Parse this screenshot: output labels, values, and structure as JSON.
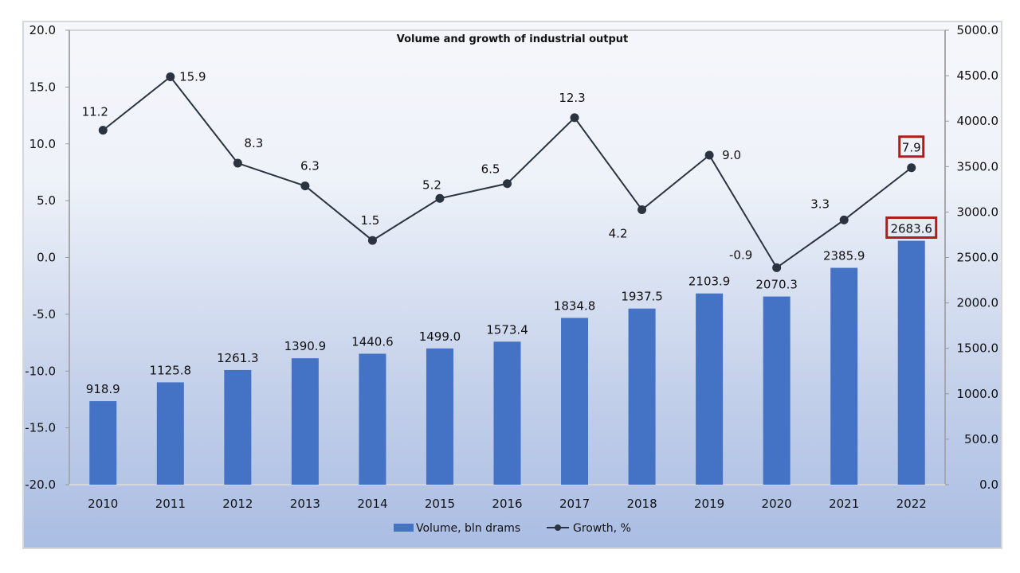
{
  "chart_data": {
    "type": "bar+line",
    "title": "Volume and growth of industrial output",
    "categories": [
      "2010",
      "2011",
      "2012",
      "2013",
      "2014",
      "2015",
      "2016",
      "2017",
      "2018",
      "2019",
      "2020",
      "2021",
      "2022"
    ],
    "series": [
      {
        "name": "Volume, bln drams",
        "type": "bar",
        "axis": "right",
        "values": [
          918.9,
          1125.8,
          1261.3,
          1390.9,
          1440.6,
          1499.0,
          1573.4,
          1834.8,
          1937.5,
          2103.9,
          2070.3,
          2385.9,
          2683.6
        ],
        "labels": [
          "918.9",
          "1125.8",
          "1261.3",
          "1390.9",
          "1440.6",
          "1499.0",
          "1573.4",
          "1834.8",
          "1937.5",
          "2103.9",
          "2070.3",
          "2385.9",
          "2683.6"
        ]
      },
      {
        "name": "Growth, %",
        "type": "line",
        "axis": "left",
        "values": [
          11.2,
          15.9,
          8.3,
          6.3,
          1.5,
          5.2,
          6.5,
          12.3,
          4.2,
          9.0,
          -0.9,
          3.3,
          7.9
        ],
        "labels": [
          "11.2",
          "15.9",
          "8.3",
          "6.3",
          "1.5",
          "5.2",
          "6.5",
          "12.3",
          "4.2",
          "9.0",
          "-0.9",
          "3.3",
          "7.9"
        ]
      }
    ],
    "left_axis": {
      "range": [
        -20,
        20
      ],
      "ticks": [
        "20.0",
        "15.0",
        "10.0",
        "5.0",
        "0.0",
        "-5.0",
        "-10.0",
        "-15.0",
        "-20.0"
      ]
    },
    "right_axis": {
      "range": [
        0,
        5000
      ],
      "ticks": [
        "5000.0",
        "4500.0",
        "4000.0",
        "3500.0",
        "3000.0",
        "2500.0",
        "2000.0",
        "1500.0",
        "1000.0",
        "500.0",
        "0.0"
      ]
    },
    "legend": {
      "position": "bottom",
      "items": [
        "Volume, bln drams",
        "Growth, %"
      ]
    },
    "highlighted": [
      "2022"
    ],
    "grid": false
  },
  "colors": {
    "bar": "#4472c4",
    "line": "#2b3340",
    "highlight": "#b01c1c",
    "axis": "#999999"
  }
}
